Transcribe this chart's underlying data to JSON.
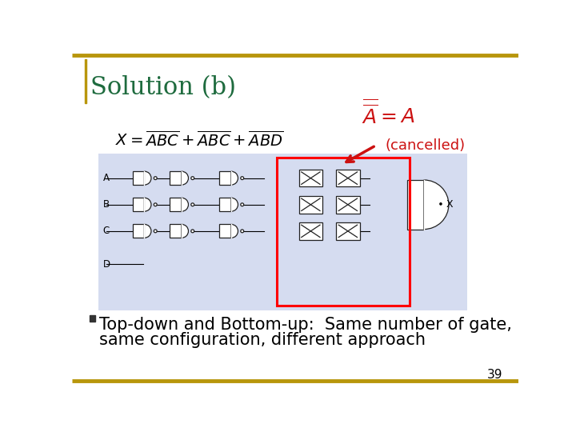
{
  "title": "Solution (b)",
  "title_color": "#1E6B3E",
  "title_fontsize": 22,
  "border_color": "#B8960C",
  "formula_fontsize": 14,
  "cancelled_color": "#CC1111",
  "cancelled_text": "(cancelled)",
  "cancelled_fontsize": 13,
  "bullet_color": "#333333",
  "bullet_text_line1": "Top-down and Bottom-up:  Same number of gate,",
  "bullet_text_line2": "same configuration, different approach",
  "bullet_fontsize": 15,
  "page_number": "39",
  "page_number_fontsize": 11,
  "slide_bg": "#FFFFFF",
  "diagram_bg": "#D5DCF0",
  "left_bar_color": "#B8960C",
  "gate_color": "#FFFFFF",
  "gate_edge": "#222222"
}
